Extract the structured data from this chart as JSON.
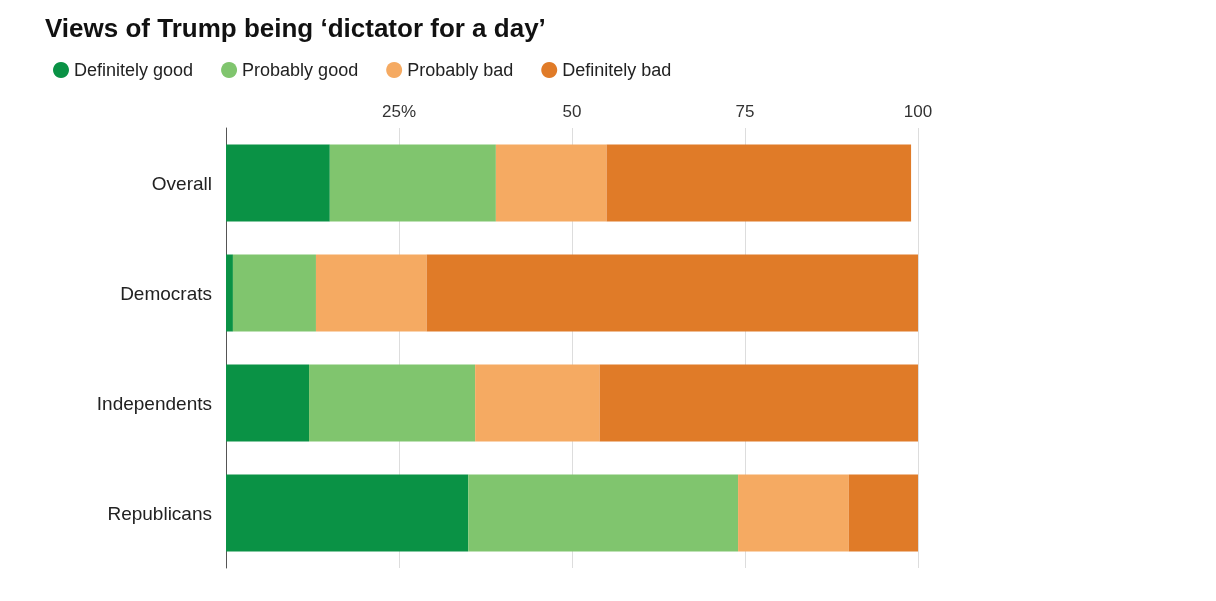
{
  "chart_data": {
    "type": "bar",
    "title": "Views of Trump being ‘dictator for a day’",
    "orientation": "horizontal",
    "stacked": true,
    "categories": [
      "Overall",
      "Democrats",
      "Independents",
      "Republicans"
    ],
    "series": [
      {
        "name": "Definitely good",
        "color": "#0a9245",
        "values": [
          15,
          1,
          12,
          35
        ]
      },
      {
        "name": "Probably good",
        "color": "#80c56e",
        "values": [
          24,
          12,
          24,
          39
        ]
      },
      {
        "name": "Probably bad",
        "color": "#f5aa62",
        "values": [
          16,
          16,
          18,
          16
        ]
      },
      {
        "name": "Definitely bad",
        "color": "#e07b28",
        "values": [
          44,
          71,
          46,
          10
        ]
      }
    ],
    "xlim": [
      0,
      100
    ],
    "xticks": [
      {
        "value": 0,
        "label": null
      },
      {
        "value": 25,
        "label": "25%"
      },
      50,
      75,
      100
    ],
    "grid": "x",
    "legend": "top left"
  }
}
